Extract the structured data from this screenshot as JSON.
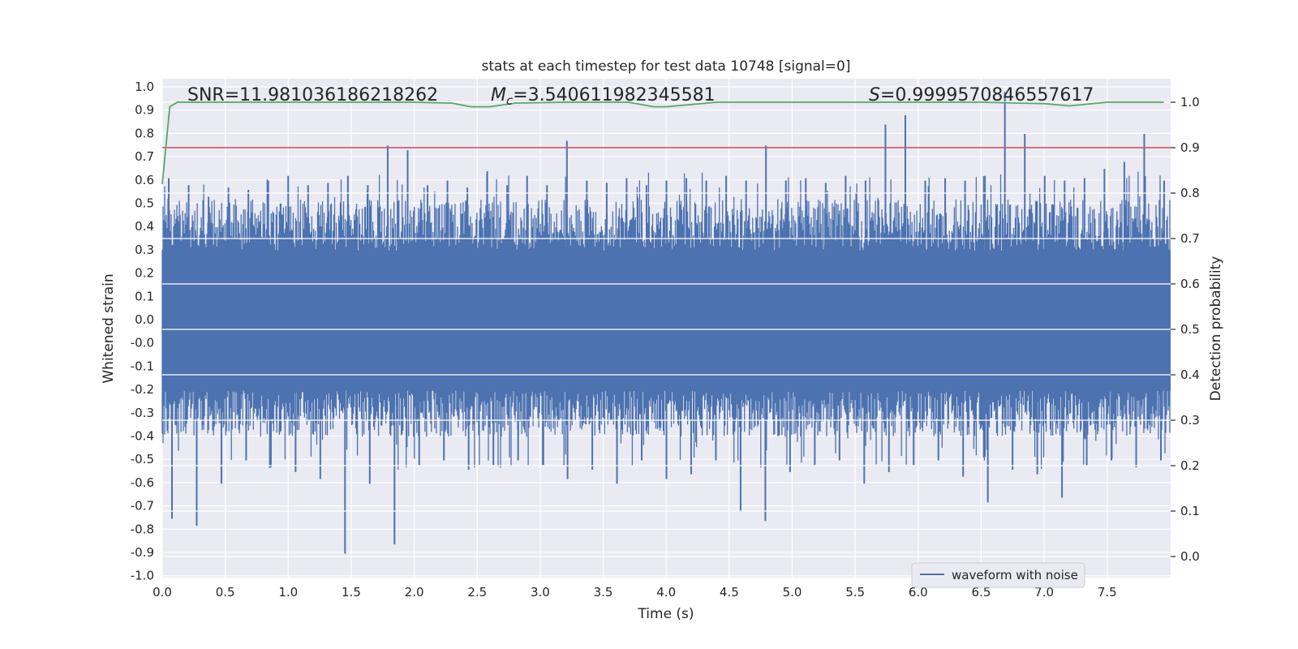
{
  "chart_data": {
    "type": "line",
    "title": "stats at each timestep for test data 10748 [signal=0]",
    "xlabel": "Time (s)",
    "ylabel": "Whitened strain",
    "y2label": "Detection probability",
    "xlim": [
      0,
      7.99
    ],
    "ylim": [
      -1.09,
      1.05
    ],
    "y2lim": [
      -0.045,
      1.045
    ],
    "xticks": [
      "0.0",
      "0.5",
      "1.0",
      "1.5",
      "2.0",
      "2.5",
      "3.0",
      "3.5",
      "4.0",
      "4.5",
      "5.0",
      "5.5",
      "6.0",
      "6.5",
      "7.0",
      "7.5"
    ],
    "yticks": [
      "1.0",
      "0.9",
      "0.8",
      "0.7",
      "0.6",
      "0.5",
      "0.4",
      "0.3",
      "0.2",
      "0.1",
      "0.0",
      "-0.0",
      "-0.1",
      "-0.2",
      "-0.3",
      "-0.4",
      "-0.5",
      "-0.6",
      "-0.7",
      "-0.8",
      "-0.9",
      "-1.0"
    ],
    "y2ticks": [
      "1.0",
      "0.9",
      "0.8",
      "0.7",
      "0.6",
      "0.5",
      "0.4",
      "0.3",
      "0.2",
      "0.1",
      "0.0"
    ],
    "annotations": {
      "snr": "SNR=11.981036186218262",
      "mc_prefix": "M",
      "mc_sub": "c",
      "mc_value": "=3.540611982345581",
      "s_prefix": "S",
      "s_value": "=0.9999570846557617"
    },
    "threshold": {
      "value": 0.9,
      "color": "#c44e52"
    },
    "series": [
      {
        "name": "waveform with noise",
        "axis": "left",
        "color": "#4c72b0",
        "description": "dense noise trace",
        "peaks_max": [
          0.61,
          0.58,
          0.53,
          0.57,
          0.56,
          0.6,
          0.62,
          0.58,
          0.59,
          0.62,
          0.58,
          0.75,
          0.73,
          0.58,
          0.6,
          0.57,
          0.64,
          0.58,
          0.62,
          0.58,
          0.77,
          0.6,
          0.59,
          0.61,
          0.58,
          0.6,
          0.61,
          0.6,
          0.62,
          0.6,
          0.75,
          0.6,
          0.61,
          0.59,
          0.62,
          0.6,
          0.84,
          0.88,
          0.6,
          0.61,
          0.6,
          0.62,
          0.98,
          0.8,
          0.62,
          0.6,
          0.61,
          0.65,
          0.68,
          0.8,
          0.6
        ],
        "peaks_min": [
          -0.85,
          -0.88,
          -0.7,
          -0.6,
          -0.63,
          -0.65,
          -0.68,
          -1.0,
          -0.7,
          -0.96,
          -0.62,
          -0.6,
          -0.64,
          -0.62,
          -0.6,
          -0.62,
          -0.68,
          -0.64,
          -0.7,
          -0.6,
          -0.68,
          -0.66,
          -0.6,
          -0.82,
          -0.86,
          -0.65,
          -0.62,
          -0.6,
          -0.7,
          -0.65,
          -0.62,
          -0.6,
          -0.67,
          -0.78,
          -0.64,
          -0.66,
          -0.76,
          -0.62,
          -0.6,
          -0.63,
          -0.6
        ]
      },
      {
        "name": "detection probability",
        "axis": "right",
        "color": "#55a868",
        "x": [
          0.0,
          0.06,
          0.12,
          0.3,
          0.6,
          1.0,
          1.5,
          2.0,
          2.3,
          2.45,
          2.6,
          2.8,
          3.2,
          3.7,
          3.9,
          4.0,
          4.2,
          4.4,
          5.0,
          5.5,
          6.0,
          6.5,
          6.8,
          7.0,
          7.2,
          7.5,
          7.95
        ],
        "values": [
          0.82,
          0.99,
          1.0,
          1.0,
          1.0,
          1.0,
          1.0,
          1.0,
          0.998,
          0.99,
          0.99,
          0.998,
          1.0,
          1.0,
          0.99,
          0.99,
          0.995,
          1.0,
          1.0,
          1.0,
          1.0,
          1.0,
          0.998,
          0.997,
          0.992,
          1.0,
          1.0
        ]
      }
    ],
    "legend": {
      "placement": "bottom-right",
      "entries": [
        "waveform with noise"
      ]
    }
  }
}
